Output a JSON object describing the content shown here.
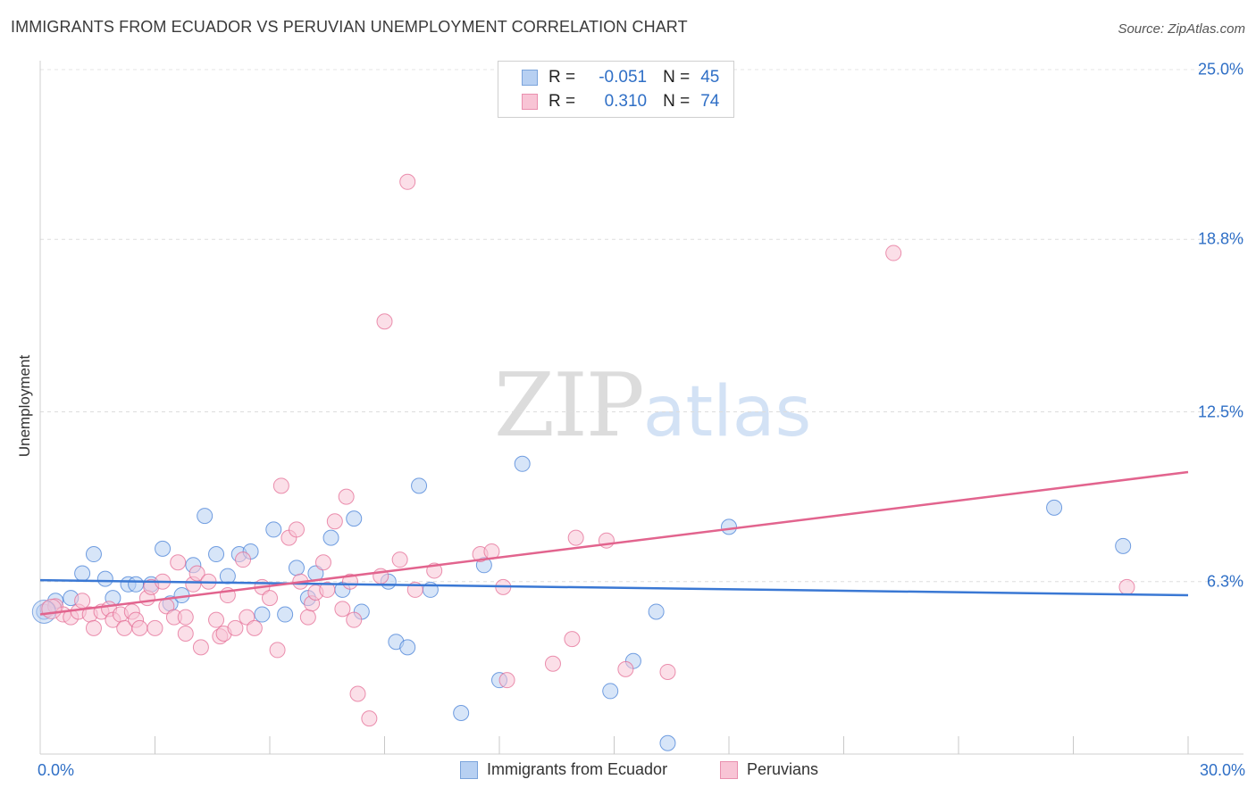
{
  "title": "IMMIGRANTS FROM ECUADOR VS PERUVIAN UNEMPLOYMENT CORRELATION CHART",
  "source": "Source: ZipAtlas.com",
  "watermark": {
    "zip": "ZIP",
    "atlas": "atlas"
  },
  "legend": {
    "r_label": "R =",
    "n_label": "N =",
    "rows": [
      {
        "r": "-0.051",
        "n": "45",
        "fill": "#b7d0f2",
        "stroke": "#7aa3db"
      },
      {
        "r": "0.310",
        "n": "74",
        "fill": "#f8c4d5",
        "stroke": "#e98fae"
      }
    ]
  },
  "bottom_legend": [
    {
      "label": "Immigrants from Ecuador",
      "fill": "#b7d0f2",
      "stroke": "#7aa3db"
    },
    {
      "label": "Peruvians",
      "fill": "#f8c4d5",
      "stroke": "#e98fae"
    }
  ],
  "chart_data": {
    "type": "scatter",
    "title": "IMMIGRANTS FROM ECUADOR VS PERUVIAN UNEMPLOYMENT CORRELATION CHART",
    "xlabel": "",
    "ylabel": "Unemployment",
    "xlim": [
      0,
      30
    ],
    "ylim": [
      0,
      25.0
    ],
    "x_tick_labels": [
      "0.0%",
      "30.0%"
    ],
    "y_ticks": [
      6.3,
      12.5,
      18.8,
      25.0
    ],
    "y_tick_labels": [
      "6.3%",
      "12.5%",
      "18.8%",
      "25.0%"
    ],
    "grid": true,
    "legend_position": "top-center",
    "series": [
      {
        "name": "Immigrants from Ecuador",
        "color": "#3a78d4",
        "fill": "#b7d0f2",
        "trend": {
          "x": [
            0,
            30
          ],
          "y": [
            6.35,
            5.8
          ]
        },
        "points": [
          [
            0.1,
            5.2
          ],
          [
            0.4,
            5.6
          ],
          [
            0.8,
            5.7
          ],
          [
            1.1,
            6.6
          ],
          [
            1.4,
            7.3
          ],
          [
            1.7,
            6.4
          ],
          [
            1.9,
            5.7
          ],
          [
            2.3,
            6.2
          ],
          [
            2.5,
            6.2
          ],
          [
            2.9,
            6.2
          ],
          [
            3.2,
            7.5
          ],
          [
            3.4,
            5.5
          ],
          [
            3.7,
            5.8
          ],
          [
            4.0,
            6.9
          ],
          [
            4.3,
            8.7
          ],
          [
            4.6,
            7.3
          ],
          [
            4.9,
            6.5
          ],
          [
            5.2,
            7.3
          ],
          [
            5.5,
            7.4
          ],
          [
            5.8,
            5.1
          ],
          [
            6.1,
            8.2
          ],
          [
            6.4,
            5.1
          ],
          [
            6.7,
            6.8
          ],
          [
            7.0,
            5.7
          ],
          [
            7.2,
            6.6
          ],
          [
            7.6,
            7.9
          ],
          [
            7.9,
            6.0
          ],
          [
            8.2,
            8.6
          ],
          [
            8.4,
            5.2
          ],
          [
            9.1,
            6.3
          ],
          [
            9.3,
            4.1
          ],
          [
            9.6,
            3.9
          ],
          [
            9.9,
            9.8
          ],
          [
            10.2,
            6.0
          ],
          [
            11.0,
            1.5
          ],
          [
            11.6,
            6.9
          ],
          [
            12.0,
            2.7
          ],
          [
            12.6,
            10.6
          ],
          [
            14.9,
            2.3
          ],
          [
            15.5,
            3.4
          ],
          [
            16.1,
            5.2
          ],
          [
            16.4,
            0.4
          ],
          [
            18.0,
            8.3
          ],
          [
            26.5,
            9.0
          ],
          [
            28.3,
            7.6
          ]
        ]
      },
      {
        "name": "Peruvians",
        "color": "#e2648e",
        "fill": "#f8c4d5",
        "trend": {
          "x": [
            0,
            30
          ],
          "y": [
            5.1,
            10.3
          ]
        },
        "points": [
          [
            0.2,
            5.3
          ],
          [
            0.4,
            5.4
          ],
          [
            0.6,
            5.1
          ],
          [
            0.8,
            5.0
          ],
          [
            1.0,
            5.2
          ],
          [
            1.1,
            5.6
          ],
          [
            1.3,
            5.1
          ],
          [
            1.4,
            4.6
          ],
          [
            1.6,
            5.2
          ],
          [
            1.8,
            5.3
          ],
          [
            1.9,
            4.9
          ],
          [
            2.1,
            5.1
          ],
          [
            2.2,
            4.6
          ],
          [
            2.4,
            5.2
          ],
          [
            2.5,
            4.9
          ],
          [
            2.6,
            4.6
          ],
          [
            2.8,
            5.7
          ],
          [
            2.9,
            6.1
          ],
          [
            3.0,
            4.6
          ],
          [
            3.2,
            6.3
          ],
          [
            3.3,
            5.4
          ],
          [
            3.5,
            5.0
          ],
          [
            3.6,
            7.0
          ],
          [
            3.8,
            5.0
          ],
          [
            3.8,
            4.4
          ],
          [
            4.0,
            6.2
          ],
          [
            4.1,
            6.6
          ],
          [
            4.2,
            3.9
          ],
          [
            4.4,
            6.3
          ],
          [
            4.6,
            4.9
          ],
          [
            4.7,
            4.3
          ],
          [
            4.8,
            4.4
          ],
          [
            4.9,
            5.8
          ],
          [
            5.1,
            4.6
          ],
          [
            5.3,
            7.1
          ],
          [
            5.4,
            5.0
          ],
          [
            5.6,
            4.6
          ],
          [
            5.8,
            6.1
          ],
          [
            6.0,
            5.7
          ],
          [
            6.2,
            3.8
          ],
          [
            6.3,
            9.8
          ],
          [
            6.5,
            7.9
          ],
          [
            6.7,
            8.2
          ],
          [
            6.8,
            6.3
          ],
          [
            7.0,
            5.0
          ],
          [
            7.1,
            5.5
          ],
          [
            7.2,
            5.9
          ],
          [
            7.4,
            7.0
          ],
          [
            7.5,
            6.0
          ],
          [
            7.7,
            8.5
          ],
          [
            7.9,
            5.3
          ],
          [
            8.0,
            9.4
          ],
          [
            8.1,
            6.3
          ],
          [
            8.2,
            4.9
          ],
          [
            8.3,
            2.2
          ],
          [
            8.6,
            1.3
          ],
          [
            8.9,
            6.5
          ],
          [
            9.0,
            15.8
          ],
          [
            9.4,
            7.1
          ],
          [
            9.6,
            20.9
          ],
          [
            9.8,
            6.0
          ],
          [
            10.3,
            6.7
          ],
          [
            11.5,
            7.3
          ],
          [
            11.8,
            7.4
          ],
          [
            12.1,
            6.1
          ],
          [
            12.2,
            2.7
          ],
          [
            13.4,
            3.3
          ],
          [
            13.9,
            4.2
          ],
          [
            14.0,
            7.9
          ],
          [
            14.8,
            7.8
          ],
          [
            15.3,
            3.1
          ],
          [
            16.4,
            3.0
          ],
          [
            22.3,
            18.3
          ],
          [
            28.4,
            6.1
          ]
        ]
      }
    ]
  }
}
